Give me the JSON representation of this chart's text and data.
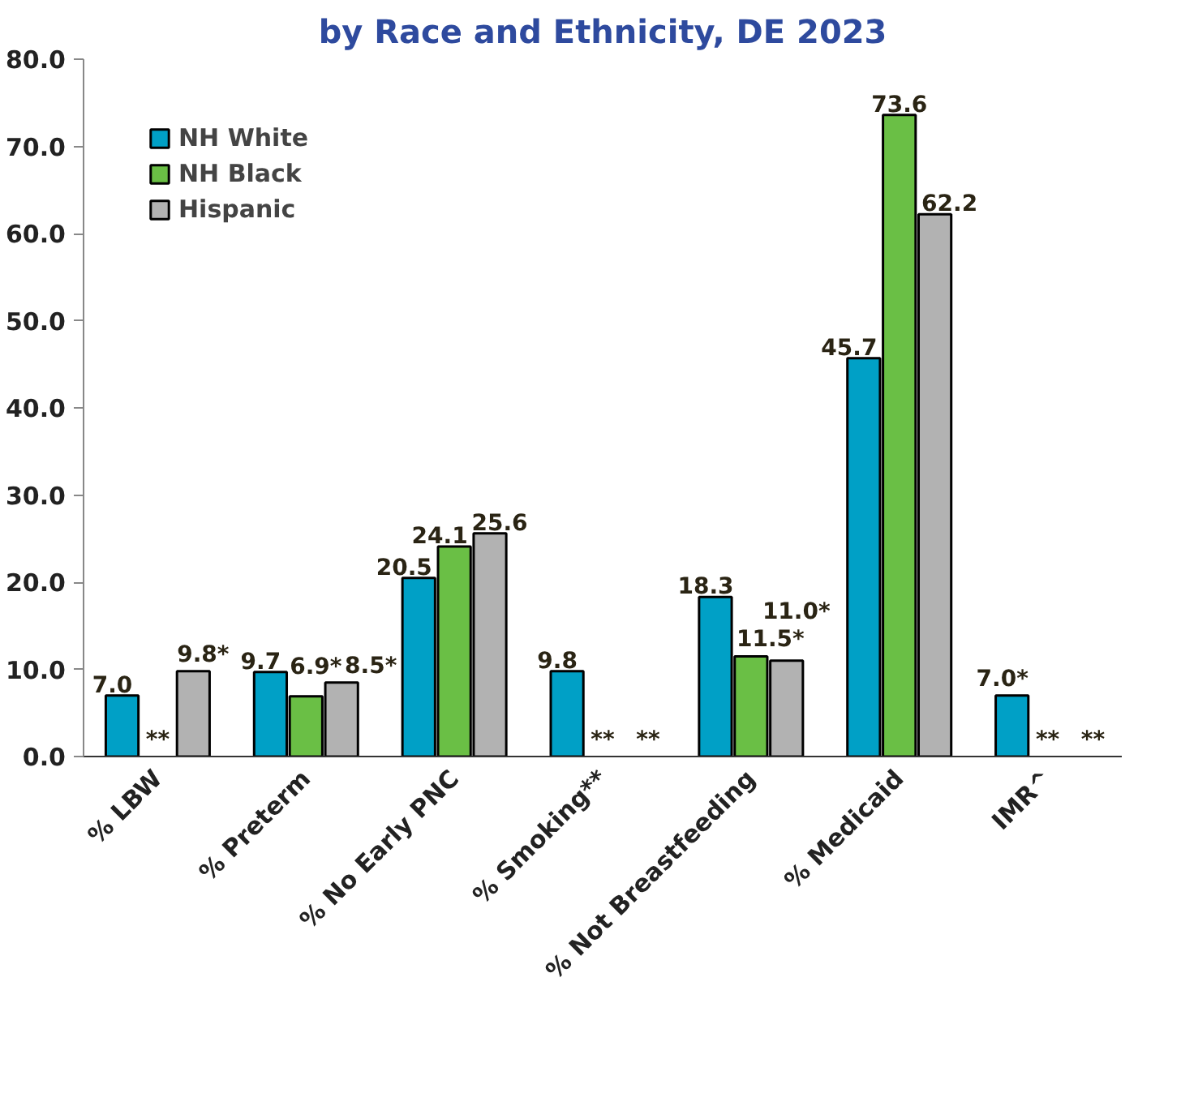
{
  "chart_data": {
    "type": "bar",
    "title": "by Race and Ethnicity, DE 2023",
    "categories": [
      "% LBW",
      "% Preterm",
      "% No Early PNC",
      "% Smoking**",
      "% Not Breastfeeding",
      "% Medicaid",
      "IMR^"
    ],
    "series": [
      {
        "name": "NH White",
        "color": "#00a0c6",
        "values": [
          7.0,
          9.7,
          20.5,
          9.8,
          18.3,
          45.7,
          7.0
        ],
        "value_labels": [
          "7.0",
          "9.7",
          "20.5",
          "9.8",
          "18.3",
          "45.7",
          "7.0*"
        ]
      },
      {
        "name": "NH Black",
        "color": "#6abf45",
        "values": [
          null,
          6.9,
          24.1,
          null,
          11.5,
          73.6,
          null
        ],
        "value_labels": [
          "**",
          "6.9*",
          "24.1",
          "**",
          "11.5*",
          "73.6",
          "**"
        ]
      },
      {
        "name": "Hispanic",
        "color": "#b2b2b2",
        "values": [
          9.8,
          8.5,
          25.6,
          null,
          11.0,
          62.2,
          null
        ],
        "value_labels": [
          "9.8*",
          "8.5*",
          "25.6",
          "**",
          "11.0*",
          "62.2",
          "**"
        ]
      }
    ],
    "ylim": [
      0,
      80
    ],
    "yticks": [
      {
        "value": 0,
        "label": "0.0"
      },
      {
        "value": 10,
        "label": "10.0"
      },
      {
        "value": 20,
        "label": "20.0"
      },
      {
        "value": 30,
        "label": "30.0"
      },
      {
        "value": 40,
        "label": "40.0"
      },
      {
        "value": 50,
        "label": "50.0"
      },
      {
        "value": 60,
        "label": "60.0"
      },
      {
        "value": 70,
        "label": "70.0"
      },
      {
        "value": 80,
        "label": "80.0"
      }
    ],
    "grid": false,
    "legend": "top left"
  }
}
